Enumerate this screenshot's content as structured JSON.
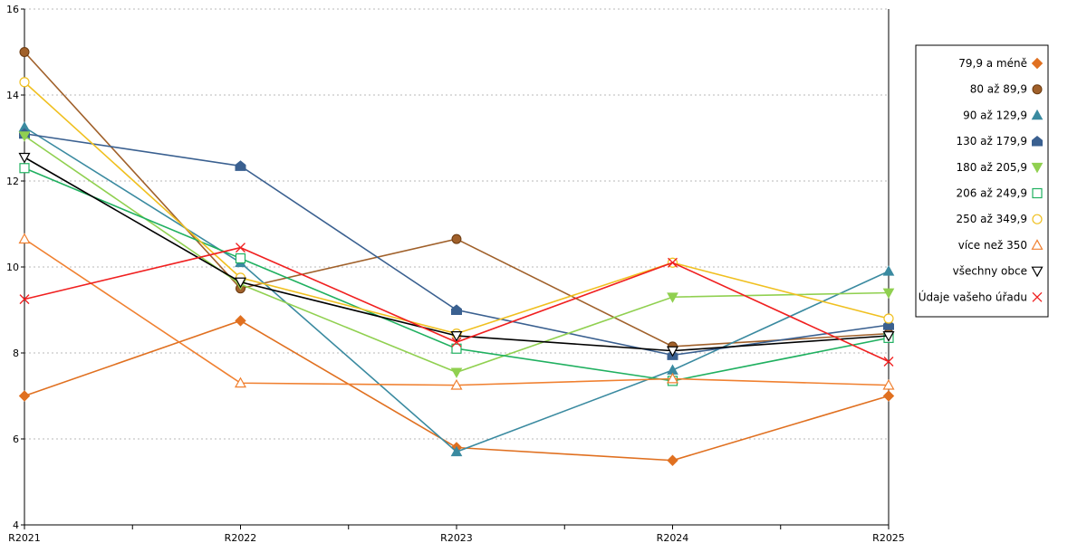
{
  "chart_data": {
    "type": "line",
    "categories": [
      "R2021",
      "R2022",
      "R2023",
      "R2024",
      "R2025"
    ],
    "ylim": [
      4,
      16
    ],
    "yticks": [
      4,
      6,
      8,
      10,
      12,
      14,
      16
    ],
    "grid": "horizontal dotted",
    "legend_position": "right",
    "series": [
      {
        "name": "79,9 a méně",
        "color": "#e07020",
        "marker": "diamond",
        "values": [
          7.0,
          8.75,
          5.8,
          5.5,
          7.0
        ]
      },
      {
        "name": "80 až 89,9",
        "color": "#a0602a",
        "marker": "circle-filled",
        "values": [
          15.0,
          9.5,
          10.65,
          8.15,
          8.45
        ]
      },
      {
        "name": "90 až 129,9",
        "color": "#3a8aa0",
        "marker": "triangle-up-filled",
        "values": [
          13.25,
          10.1,
          5.7,
          7.6,
          9.9
        ]
      },
      {
        "name": "130 až 179,9",
        "color": "#3a6090",
        "marker": "pentagon-filled",
        "values": [
          13.1,
          12.35,
          9.0,
          7.95,
          8.65
        ]
      },
      {
        "name": "180 až 205,9",
        "color": "#90d050",
        "marker": "triangle-down-filled",
        "values": [
          13.05,
          9.6,
          7.55,
          9.3,
          9.4
        ]
      },
      {
        "name": "206 až 249,9",
        "color": "#20b060",
        "marker": "square-open",
        "values": [
          12.3,
          10.2,
          8.1,
          7.35,
          8.35
        ]
      },
      {
        "name": "250 až 349,9",
        "color": "#f0c020",
        "marker": "circle-open",
        "values": [
          14.3,
          9.75,
          8.45,
          10.1,
          8.8
        ]
      },
      {
        "name": "více než 350",
        "color": "#f08030",
        "marker": "triangle-up-open",
        "values": [
          10.65,
          7.3,
          7.25,
          7.4,
          7.25
        ]
      },
      {
        "name": "všechny obce",
        "color": "#000000",
        "marker": "triangle-down-open",
        "values": [
          12.55,
          9.65,
          8.4,
          8.05,
          8.4
        ]
      },
      {
        "name": "Údaje vašeho úřadu",
        "color": "#f02020",
        "marker": "x",
        "values": [
          9.25,
          10.45,
          8.25,
          10.1,
          7.8
        ]
      }
    ]
  }
}
